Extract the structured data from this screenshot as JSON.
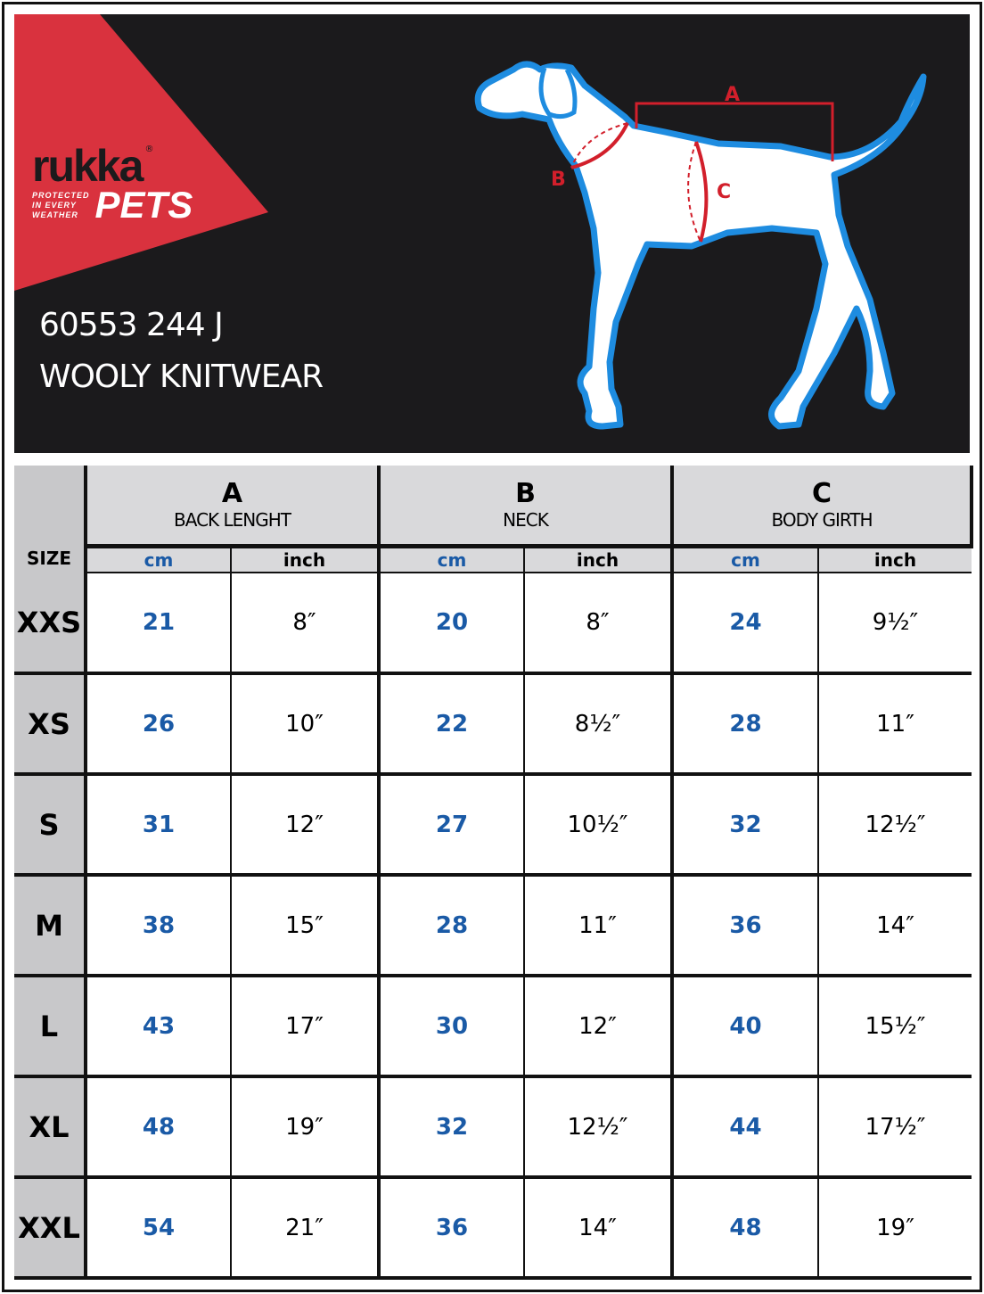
{
  "brand": {
    "logo_text": "rukka",
    "logo_sub": "PETS",
    "registered": "®",
    "tagline": [
      "PROTECTED",
      "IN EVERY",
      "WEATHER"
    ],
    "accent": "#d9323e",
    "outline": "#1e8ce0"
  },
  "product": {
    "code": "60553 244 J",
    "name": "WOOLY KNITWEAR"
  },
  "diagram": {
    "labels": {
      "a": "A",
      "b": "B",
      "c": "C"
    }
  },
  "table": {
    "size_header": "SIZE",
    "groups": [
      {
        "letter": "A",
        "name": "BACK LENGHT"
      },
      {
        "letter": "B",
        "name": "NECK"
      },
      {
        "letter": "C",
        "name": "BODY GIRTH"
      }
    ],
    "units": {
      "cm": "cm",
      "inch": "inch"
    },
    "rows": [
      {
        "size": "XXS",
        "values": [
          "21",
          "8″",
          "20",
          "8″",
          "24",
          "9½″"
        ]
      },
      {
        "size": "XS",
        "values": [
          "26",
          "10″",
          "22",
          "8½″",
          "28",
          "11″"
        ]
      },
      {
        "size": "S",
        "values": [
          "31",
          "12″",
          "27",
          "10½″",
          "32",
          "12½″"
        ]
      },
      {
        "size": "M",
        "values": [
          "38",
          "15″",
          "28",
          "11″",
          "36",
          "14″"
        ]
      },
      {
        "size": "L",
        "values": [
          "43",
          "17″",
          "30",
          "12″",
          "40",
          "15½″"
        ]
      },
      {
        "size": "XL",
        "values": [
          "48",
          "19″",
          "32",
          "12½″",
          "44",
          "17½″"
        ]
      },
      {
        "size": "XXL",
        "values": [
          "54",
          "21″",
          "36",
          "14″",
          "48",
          "19″"
        ]
      }
    ]
  }
}
